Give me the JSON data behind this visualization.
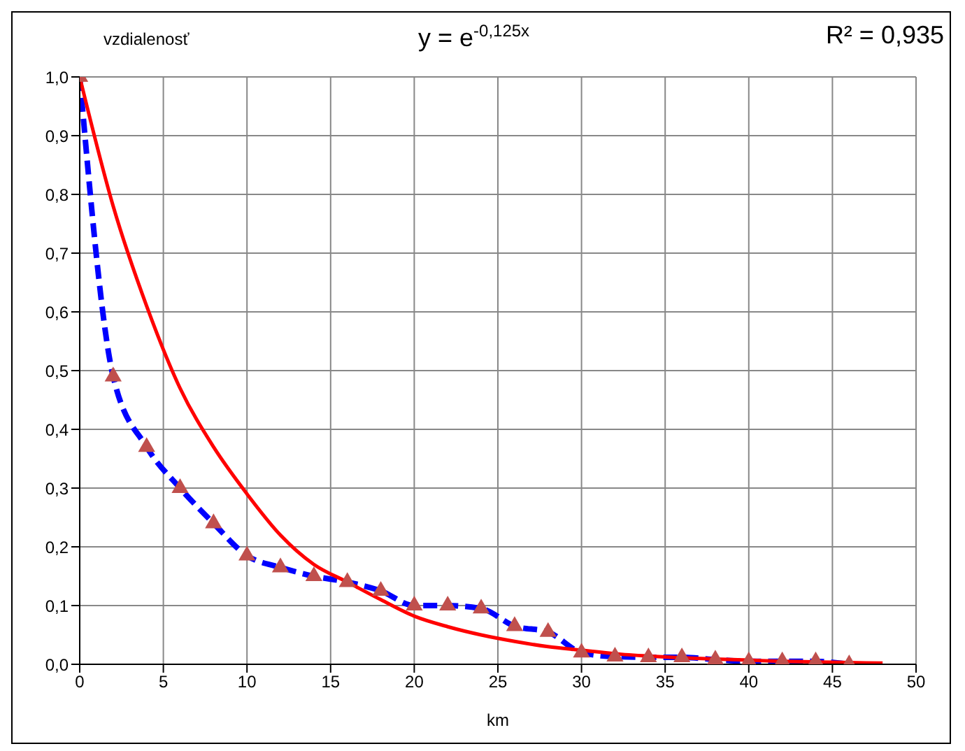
{
  "chart_data": {
    "type": "line",
    "title": "vzdialenosť",
    "xlabel": "km",
    "annotations": [
      "y = e$^{-0,125x}$",
      "R² = 0,935"
    ],
    "x": [
      0,
      2,
      4,
      6,
      8,
      10,
      12,
      14,
      16,
      18,
      20,
      22,
      24,
      26,
      28,
      30,
      32,
      34,
      36,
      38,
      40,
      42,
      44,
      46
    ],
    "series": [
      {
        "color": "#0000ff",
        "line_style": "dashed",
        "marker": "none",
        "values": [
          1.0,
          0.49,
          0.37,
          0.3,
          0.24,
          0.185,
          0.165,
          0.15,
          0.14,
          0.125,
          0.1,
          0.1,
          0.095,
          0.065,
          0.055,
          0.02,
          0.013,
          0.012,
          0.012,
          0.008,
          0.005,
          0.005,
          0.005,
          0.0
        ]
      },
      {
        "type": "scatter",
        "color": "#c0504d",
        "marker": "triangle",
        "values": [
          1.0,
          0.49,
          0.37,
          0.3,
          0.24,
          0.185,
          0.165,
          0.15,
          0.14,
          0.125,
          0.1,
          0.1,
          0.095,
          0.065,
          0.055,
          0.02,
          0.013,
          0.012,
          0.012,
          0.008,
          0.005,
          0.005,
          0.005,
          0.0
        ]
      },
      {
        "color": "#ff0000",
        "line_style": "solid",
        "marker": "none",
        "x": [
          0,
          2,
          4,
          6,
          8,
          10,
          12,
          14,
          16,
          18,
          20,
          22,
          24,
          26,
          28,
          30,
          32,
          34,
          36,
          38,
          40,
          42,
          44,
          46,
          48
        ],
        "values": [
          1.0,
          0.78,
          0.61,
          0.47,
          0.37,
          0.29,
          0.22,
          0.17,
          0.14,
          0.11,
          0.082,
          0.064,
          0.05,
          0.039,
          0.03,
          0.024,
          0.018,
          0.014,
          0.011,
          0.009,
          0.007,
          0.005,
          0.004,
          0.003,
          0.002
        ]
      }
    ],
    "xlim": [
      0,
      50
    ],
    "xticks": [
      0,
      5,
      10,
      15,
      20,
      25,
      30,
      35,
      40,
      45,
      50
    ],
    "ylim": [
      0,
      1
    ],
    "yticks": [
      {
        "value": 0,
        "label": "0,0"
      },
      {
        "value": 0.1,
        "label": "0,1"
      },
      {
        "value": 0.2,
        "label": "0,2"
      },
      {
        "value": 0.3,
        "label": "0,3"
      },
      {
        "value": 0.4,
        "label": "0,4"
      },
      {
        "value": 0.5,
        "label": "0,5"
      },
      {
        "value": 0.6,
        "label": "0,6"
      },
      {
        "value": 0.7,
        "label": "0,7"
      },
      {
        "value": 0.8,
        "label": "0,8"
      },
      {
        "value": 0.9,
        "label": "0,9"
      },
      {
        "value": 1,
        "label": "1,0"
      }
    ],
    "grid": true
  }
}
